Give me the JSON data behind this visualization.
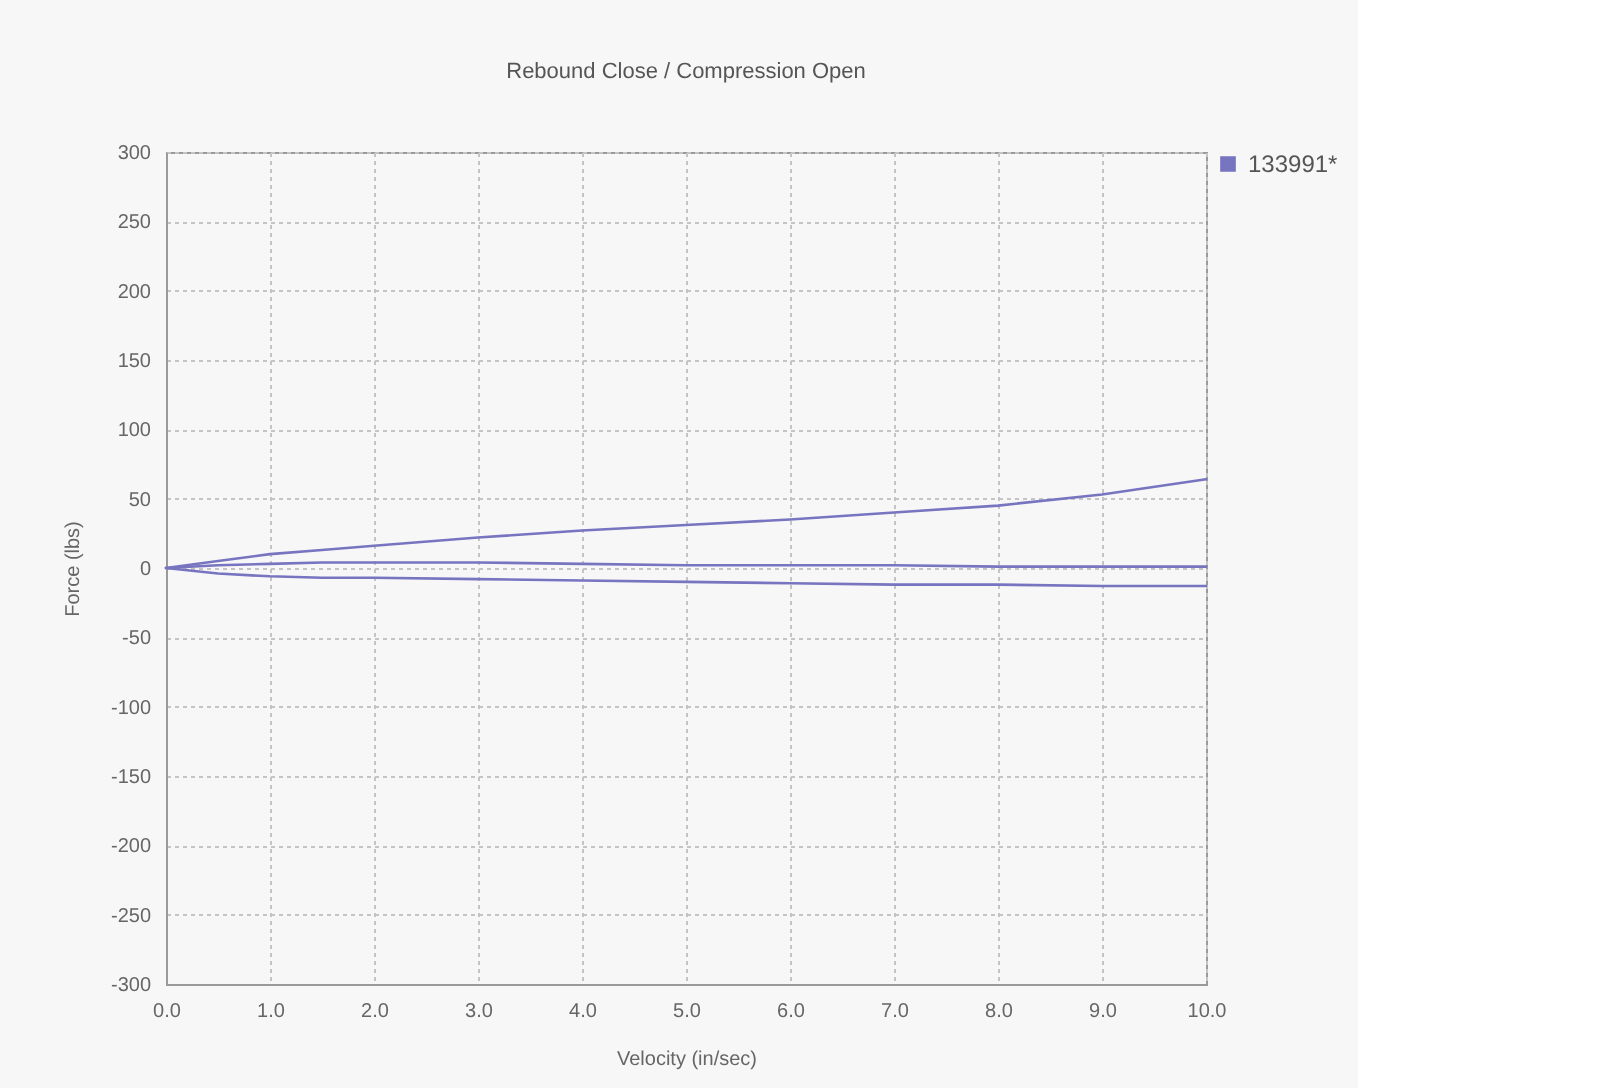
{
  "chart_data": {
    "type": "line",
    "title": "Rebound Close / Compression Open",
    "xlabel": "Velocity (in/sec)",
    "ylabel": "Force (lbs)",
    "x": [
      0,
      0.5,
      1,
      1.5,
      2,
      3,
      4,
      5,
      6,
      7,
      8,
      9,
      10
    ],
    "series": [
      {
        "name": "133991*",
        "color": "#7774c0",
        "values": [
          0,
          5,
          10,
          13,
          16,
          22,
          27,
          31,
          35,
          40,
          45,
          53,
          64
        ]
      },
      {
        "color": "#7774c0",
        "values": [
          0,
          2,
          3,
          4,
          4,
          4,
          3,
          2,
          2,
          2,
          1,
          1,
          1
        ]
      },
      {
        "color": "#7774c0",
        "values": [
          0,
          -4,
          -6,
          -7,
          -7,
          -8,
          -9,
          -10,
          -11,
          -12,
          -12,
          -13,
          -13
        ]
      }
    ],
    "xlim": [
      0,
      10
    ],
    "xticks": [
      {
        "value": 0,
        "label": "0.0"
      },
      {
        "value": 1,
        "label": "1.0"
      },
      {
        "value": 2,
        "label": "2.0"
      },
      {
        "value": 3,
        "label": "3.0"
      },
      {
        "value": 4,
        "label": "4.0"
      },
      {
        "value": 5,
        "label": "5.0"
      },
      {
        "value": 6,
        "label": "6.0"
      },
      {
        "value": 7,
        "label": "7.0"
      },
      {
        "value": 8,
        "label": "8.0"
      },
      {
        "value": 9,
        "label": "9.0"
      },
      {
        "value": 10,
        "label": "10.0"
      }
    ],
    "ylim": [
      -300,
      300
    ],
    "yticks": [
      -300,
      -250,
      -200,
      -150,
      -100,
      -50,
      0,
      50,
      100,
      150,
      200,
      250,
      300
    ],
    "grid": true,
    "legend": "top right"
  }
}
